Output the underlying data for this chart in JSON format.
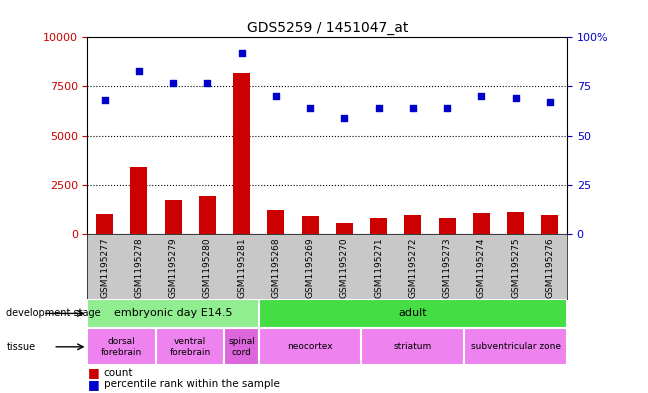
{
  "title": "GDS5259 / 1451047_at",
  "samples": [
    "GSM1195277",
    "GSM1195278",
    "GSM1195279",
    "GSM1195280",
    "GSM1195281",
    "GSM1195268",
    "GSM1195269",
    "GSM1195270",
    "GSM1195271",
    "GSM1195272",
    "GSM1195273",
    "GSM1195274",
    "GSM1195275",
    "GSM1195276"
  ],
  "count_values": [
    1000,
    3400,
    1700,
    1900,
    8200,
    1200,
    900,
    550,
    800,
    950,
    800,
    1050,
    1100,
    950
  ],
  "percentile_values": [
    68,
    83,
    77,
    77,
    92,
    70,
    64,
    59,
    64,
    64,
    64,
    70,
    69,
    67
  ],
  "ylim_left": [
    0,
    10000
  ],
  "ylim_right": [
    0,
    100
  ],
  "yticks_left": [
    0,
    2500,
    5000,
    7500,
    10000
  ],
  "yticks_right": [
    0,
    25,
    50,
    75,
    100
  ],
  "ytick_labels_right": [
    "0",
    "25",
    "50",
    "75",
    "100%"
  ],
  "dev_stage_groups": [
    {
      "label": "embryonic day E14.5",
      "start": 0,
      "end": 5,
      "color": "#90EE90"
    },
    {
      "label": "adult",
      "start": 5,
      "end": 14,
      "color": "#44DD44"
    }
  ],
  "tissue_groups": [
    {
      "label": "dorsal\nforebrain",
      "start": 0,
      "end": 2,
      "color": "#EE82EE"
    },
    {
      "label": "ventral\nforebrain",
      "start": 2,
      "end": 4,
      "color": "#EE82EE"
    },
    {
      "label": "spinal\ncord",
      "start": 4,
      "end": 5,
      "color": "#DD66DD"
    },
    {
      "label": "neocortex",
      "start": 5,
      "end": 8,
      "color": "#EE82EE"
    },
    {
      "label": "striatum",
      "start": 8,
      "end": 11,
      "color": "#EE82EE"
    },
    {
      "label": "subventricular zone",
      "start": 11,
      "end": 14,
      "color": "#EE82EE"
    }
  ],
  "bar_color": "#CC0000",
  "scatter_color": "#0000CC",
  "label_color_left": "#CC0000",
  "label_color_right": "#0000CC",
  "xtick_bg_color": "#C8C8C8",
  "bar_width": 0.5,
  "hgrid_values": [
    2500,
    5000,
    7500
  ],
  "legend_count": "count",
  "legend_percentile": "percentile rank within the sample",
  "label_dev_stage": "development stage",
  "label_tissue": "tissue"
}
